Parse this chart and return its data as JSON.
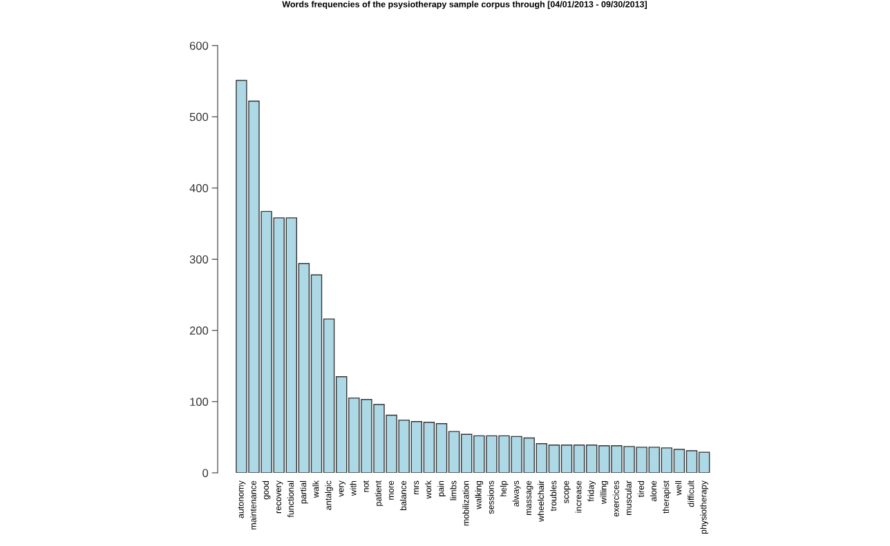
{
  "chart_data": {
    "type": "bar",
    "title": "Words frequencies of the psysiotherapy sample corpus through [04/01/2013 - 09/30/2013]",
    "categories": [
      "autonomy",
      "maintenance",
      "good",
      "recovery",
      "functional",
      "partial",
      "walk",
      "antalgic",
      "very",
      "with",
      "not",
      "patient",
      "more",
      "balance",
      "mrs",
      "work",
      "pain",
      "limbs",
      "mobilization",
      "walking",
      "sessions",
      "help",
      "always",
      "massage",
      "wheelchair",
      "troubles",
      "scope",
      "increase",
      "friday",
      "willing",
      "exercices",
      "muscular",
      "tired",
      "alone",
      "therapist",
      "well",
      "difficult",
      "physiotherapy"
    ],
    "values": [
      551,
      522,
      367,
      358,
      358,
      294,
      278,
      216,
      135,
      105,
      103,
      96,
      81,
      74,
      72,
      71,
      69,
      58,
      54,
      52,
      52,
      52,
      51,
      49,
      41,
      39,
      39,
      39,
      39,
      38,
      38,
      37,
      36,
      36,
      35,
      33,
      31,
      29
    ],
    "color": "#add8e6",
    "ylim": [
      0,
      600
    ],
    "yticks": [
      0,
      100,
      200,
      300,
      400,
      500,
      600
    ],
    "grid": false
  }
}
